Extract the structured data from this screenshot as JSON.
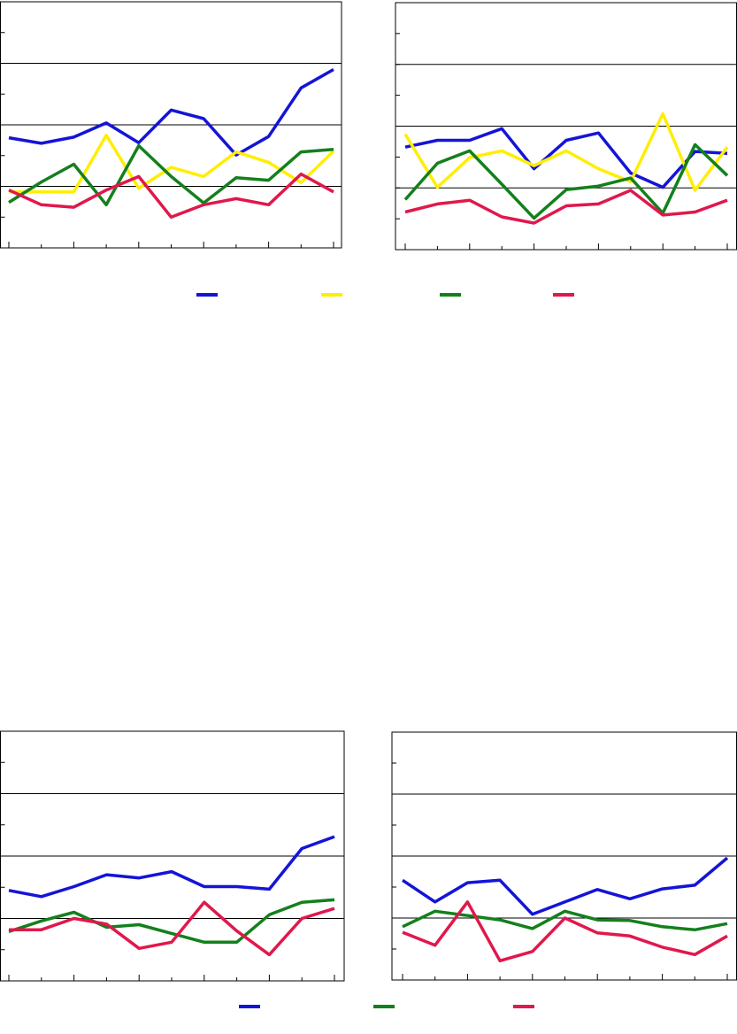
{
  "chart_data": [
    {
      "type": "line",
      "categories": [
        null,
        null,
        null,
        null,
        null,
        null,
        null,
        null,
        null,
        null,
        null
      ],
      "ylim": [
        -1,
        3
      ],
      "yticks": [
        -1,
        -0.5,
        0,
        0.5,
        1,
        1.5,
        2,
        2.5,
        3
      ],
      "grid": true,
      "legend": true,
      "series": [
        {
          "color": "#1414d8",
          "values": [
            0.79,
            0.7,
            0.8,
            1.03,
            0.71,
            1.24,
            1.1,
            0.51,
            0.81,
            1.6,
            1.9
          ]
        },
        {
          "color": "#ffee00",
          "values": [
            -0.09,
            -0.09,
            -0.09,
            0.83,
            -0.03,
            0.31,
            0.16,
            0.56,
            0.39,
            0.06,
            0.57
          ]
        },
        {
          "color": "#13801c",
          "values": [
            -0.26,
            0.07,
            0.36,
            -0.3,
            0.66,
            0.16,
            -0.27,
            0.14,
            0.1,
            0.56,
            0.6
          ]
        },
        {
          "color": "#e0184c",
          "values": [
            -0.06,
            -0.3,
            -0.34,
            -0.06,
            0.16,
            -0.5,
            -0.3,
            -0.2,
            -0.3,
            0.2,
            -0.09
          ]
        }
      ]
    },
    {
      "type": "line",
      "categories": [
        null,
        null,
        null,
        null,
        null,
        null,
        null,
        null,
        null,
        null,
        null
      ],
      "ylim": [
        -1,
        3
      ],
      "yticks": [
        -1,
        -0.5,
        0,
        0.5,
        1,
        1.5,
        2,
        2.5,
        3
      ],
      "grid": true,
      "legend": false,
      "series": [
        {
          "color": "#1414d8",
          "values": [
            0.66,
            0.77,
            0.77,
            0.96,
            0.31,
            0.77,
            0.89,
            0.24,
            0.01,
            0.59,
            0.56
          ]
        },
        {
          "color": "#ffee00",
          "values": [
            0.87,
            0.01,
            0.49,
            0.6,
            0.36,
            0.6,
            0.31,
            0.1,
            1.2,
            -0.04,
            0.66
          ]
        },
        {
          "color": "#13801c",
          "values": [
            -0.19,
            0.4,
            0.6,
            0.06,
            -0.49,
            -0.03,
            0.03,
            0.16,
            -0.41,
            0.7,
            0.2
          ]
        },
        {
          "color": "#e0184c",
          "values": [
            -0.39,
            -0.26,
            -0.2,
            -0.47,
            -0.57,
            -0.29,
            -0.26,
            -0.04,
            -0.44,
            -0.39,
            -0.2
          ]
        }
      ]
    },
    {
      "type": "line",
      "categories": [
        null,
        null,
        null,
        null,
        null,
        null,
        null,
        null,
        null,
        null,
        null
      ],
      "ylim": [
        -1,
        3
      ],
      "yticks": [
        -1,
        -0.5,
        0,
        0.5,
        1,
        1.5,
        2,
        2.5,
        3
      ],
      "grid": true,
      "legend": true,
      "series": [
        {
          "color": "#1414d8",
          "values": [
            0.45,
            0.35,
            0.51,
            0.7,
            0.65,
            0.75,
            0.51,
            0.51,
            0.47,
            1.12,
            1.31
          ]
        },
        {
          "color": "#13801c",
          "values": [
            -0.21,
            -0.04,
            0.1,
            -0.14,
            -0.1,
            -0.24,
            -0.38,
            -0.38,
            0.06,
            0.26,
            0.3
          ]
        },
        {
          "color": "#e0184c",
          "values": [
            -0.18,
            -0.18,
            0,
            -0.09,
            -0.48,
            -0.38,
            0.26,
            -0.2,
            -0.58,
            0,
            0.16
          ]
        }
      ]
    },
    {
      "type": "line",
      "categories": [
        null,
        null,
        null,
        null,
        null,
        null,
        null,
        null,
        null,
        null,
        null
      ],
      "ylim": [
        -1,
        3
      ],
      "yticks": [
        -1,
        -0.5,
        0,
        0.5,
        1,
        1.5,
        2,
        2.5,
        3
      ],
      "grid": true,
      "legend": false,
      "series": [
        {
          "color": "#1414d8",
          "values": [
            0.61,
            0.26,
            0.57,
            0.61,
            0.06,
            0.26,
            0.46,
            0.31,
            0.47,
            0.53,
            0.97
          ]
        },
        {
          "color": "#13801c",
          "values": [
            -0.14,
            0.11,
            0.04,
            -0.03,
            -0.17,
            0.11,
            -0.03,
            -0.04,
            -0.14,
            -0.19,
            -0.09
          ]
        },
        {
          "color": "#e0184c",
          "values": [
            -0.23,
            -0.44,
            0.26,
            -0.69,
            -0.54,
            0,
            -0.24,
            -0.29,
            -0.47,
            -0.59,
            -0.29
          ]
        }
      ]
    }
  ]
}
